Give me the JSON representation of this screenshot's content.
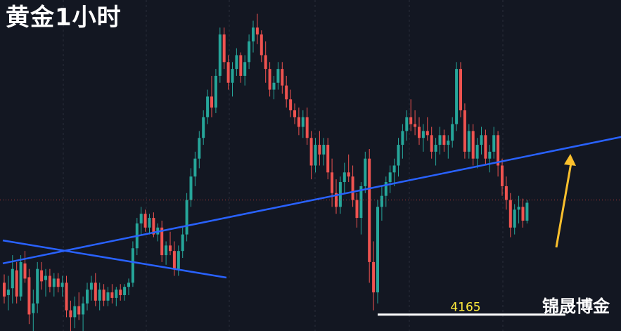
{
  "title": "黄金1小时",
  "watermark": "锦晟博金",
  "colors": {
    "background": "#131722",
    "up": "#26a69a",
    "down": "#ef5350",
    "trendline": "#2962ff",
    "support": "#ffffff",
    "support_label": "#ffeb3b",
    "arrow": "#fbc02d",
    "grid": "#2a2e39",
    "price_line": "#b03a3a"
  },
  "chart_data": {
    "type": "candlestick",
    "timeframe": "1h",
    "y_range": [
      4150,
      4390
    ],
    "annotations": {
      "support_level": {
        "label": "4165",
        "value": 4165
      },
      "rising_trendline": {
        "from_index": 0,
        "from_value": 4199,
        "to_index": 130,
        "to_value": 4279
      },
      "falling_trendline": {
        "from_index": 0,
        "from_value": 4180,
        "to_index": 60,
        "to_value": 4140
      },
      "price_line": 4245,
      "arrow": "up"
    },
    "candles": [
      [
        4185,
        4191,
        4170,
        4175
      ],
      [
        4176,
        4190,
        4165,
        4180
      ],
      [
        4181,
        4205,
        4170,
        4195
      ],
      [
        4194,
        4200,
        4170,
        4175
      ],
      [
        4175,
        4205,
        4172,
        4200
      ],
      [
        4199,
        4208,
        4185,
        4188
      ],
      [
        4189,
        4195,
        4155,
        4162
      ],
      [
        4163,
        4180,
        4140,
        4170
      ],
      [
        4170,
        4200,
        4163,
        4195
      ],
      [
        4194,
        4200,
        4180,
        4186
      ],
      [
        4187,
        4195,
        4175,
        4190
      ],
      [
        4190,
        4195,
        4178,
        4182
      ],
      [
        4182,
        4192,
        4175,
        4188
      ],
      [
        4188,
        4192,
        4178,
        4182
      ],
      [
        4182,
        4190,
        4175,
        4185
      ],
      [
        4185,
        4190,
        4160,
        4165
      ],
      [
        4165,
        4172,
        4150,
        4160
      ],
      [
        4160,
        4175,
        4152,
        4168
      ],
      [
        4168,
        4178,
        4158,
        4162
      ],
      [
        4162,
        4175,
        4150,
        4170
      ],
      [
        4170,
        4185,
        4165,
        4180
      ],
      [
        4180,
        4190,
        4172,
        4185
      ],
      [
        4185,
        4192,
        4168,
        4172
      ],
      [
        4172,
        4185,
        4165,
        4180
      ],
      [
        4180,
        4184,
        4168,
        4172
      ],
      [
        4172,
        4182,
        4168,
        4178
      ],
      [
        4178,
        4184,
        4170,
        4174
      ],
      [
        4174,
        4182,
        4168,
        4180
      ],
      [
        4180,
        4184,
        4172,
        4176
      ],
      [
        4176,
        4184,
        4172,
        4182
      ],
      [
        4182,
        4188,
        4176,
        4185
      ],
      [
        4185,
        4215,
        4182,
        4210
      ],
      [
        4210,
        4232,
        4205,
        4228
      ],
      [
        4228,
        4240,
        4220,
        4235
      ],
      [
        4235,
        4238,
        4222,
        4225
      ],
      [
        4225,
        4235,
        4220,
        4232
      ],
      [
        4232,
        4236,
        4218,
        4220
      ],
      [
        4220,
        4228,
        4215,
        4225
      ],
      [
        4225,
        4230,
        4200,
        4205
      ],
      [
        4205,
        4215,
        4198,
        4212
      ],
      [
        4212,
        4222,
        4205,
        4208
      ],
      [
        4208,
        4215,
        4190,
        4195
      ],
      [
        4195,
        4212,
        4190,
        4208
      ],
      [
        4208,
        4225,
        4203,
        4220
      ],
      [
        4220,
        4250,
        4215,
        4245
      ],
      [
        4245,
        4268,
        4240,
        4262
      ],
      [
        4262,
        4280,
        4255,
        4275
      ],
      [
        4275,
        4295,
        4268,
        4290
      ],
      [
        4290,
        4310,
        4285,
        4305
      ],
      [
        4305,
        4325,
        4300,
        4320
      ],
      [
        4320,
        4335,
        4305,
        4312
      ],
      [
        4312,
        4340,
        4308,
        4335
      ],
      [
        4335,
        4370,
        4330,
        4365
      ],
      [
        4365,
        4370,
        4340,
        4345
      ],
      [
        4345,
        4350,
        4325,
        4330
      ],
      [
        4330,
        4345,
        4320,
        4340
      ],
      [
        4340,
        4355,
        4335,
        4350
      ],
      [
        4350,
        4352,
        4330,
        4335
      ],
      [
        4335,
        4350,
        4328,
        4345
      ],
      [
        4345,
        4365,
        4340,
        4360
      ],
      [
        4360,
        4375,
        4352,
        4370
      ],
      [
        4370,
        4380,
        4358,
        4365
      ],
      [
        4365,
        4368,
        4345,
        4350
      ],
      [
        4350,
        4360,
        4330,
        4340
      ],
      [
        4340,
        4345,
        4320,
        4325
      ],
      [
        4325,
        4335,
        4318,
        4330
      ],
      [
        4330,
        4345,
        4325,
        4340
      ],
      [
        4340,
        4345,
        4322,
        4328
      ],
      [
        4328,
        4335,
        4312,
        4318
      ],
      [
        4318,
        4325,
        4305,
        4310
      ],
      [
        4310,
        4315,
        4300,
        4305
      ],
      [
        4305,
        4312,
        4292,
        4298
      ],
      [
        4298,
        4310,
        4290,
        4305
      ],
      [
        4305,
        4312,
        4285,
        4290
      ],
      [
        4290,
        4295,
        4260,
        4270
      ],
      [
        4270,
        4290,
        4265,
        4285
      ],
      [
        4285,
        4295,
        4270,
        4278
      ],
      [
        4278,
        4290,
        4270,
        4285
      ],
      [
        4285,
        4290,
        4260,
        4265
      ],
      [
        4265,
        4275,
        4240,
        4250
      ],
      [
        4250,
        4260,
        4235,
        4240
      ],
      [
        4240,
        4262,
        4235,
        4258
      ],
      [
        4258,
        4272,
        4250,
        4265
      ],
      [
        4265,
        4278,
        4258,
        4262
      ],
      [
        4262,
        4270,
        4240,
        4245
      ],
      [
        4245,
        4250,
        4225,
        4232
      ],
      [
        4232,
        4258,
        4220,
        4255
      ],
      [
        4255,
        4280,
        4250,
        4275
      ],
      [
        4275,
        4282,
        4185,
        4200
      ],
      [
        4200,
        4215,
        4165,
        4178
      ],
      [
        4178,
        4245,
        4170,
        4240
      ],
      [
        4240,
        4255,
        4230,
        4248
      ],
      [
        4248,
        4262,
        4240,
        4258
      ],
      [
        4258,
        4270,
        4250,
        4265
      ],
      [
        4265,
        4275,
        4255,
        4270
      ],
      [
        4270,
        4290,
        4262,
        4285
      ],
      [
        4285,
        4300,
        4275,
        4295
      ],
      [
        4295,
        4310,
        4288,
        4305
      ],
      [
        4305,
        4318,
        4295,
        4300
      ],
      [
        4300,
        4310,
        4292,
        4298
      ],
      [
        4298,
        4305,
        4285,
        4290
      ],
      [
        4290,
        4300,
        4280,
        4295
      ],
      [
        4295,
        4305,
        4288,
        4292
      ],
      [
        4292,
        4298,
        4275,
        4280
      ],
      [
        4280,
        4290,
        4270,
        4285
      ],
      [
        4285,
        4298,
        4278,
        4292
      ],
      [
        4292,
        4296,
        4280,
        4285
      ],
      [
        4285,
        4292,
        4275,
        4288
      ],
      [
        4288,
        4305,
        4283,
        4300
      ],
      [
        4300,
        4345,
        4295,
        4340
      ],
      [
        4340,
        4345,
        4305,
        4310
      ],
      [
        4310,
        4315,
        4275,
        4280
      ],
      [
        4280,
        4300,
        4275,
        4295
      ],
      [
        4295,
        4300,
        4270,
        4275
      ],
      [
        4275,
        4290,
        4268,
        4285
      ],
      [
        4285,
        4298,
        4278,
        4292
      ],
      [
        4292,
        4296,
        4270,
        4275
      ],
      [
        4275,
        4285,
        4265,
        4280
      ],
      [
        4280,
        4298,
        4275,
        4292
      ],
      [
        4292,
        4295,
        4262,
        4270
      ],
      [
        4270,
        4275,
        4248,
        4255
      ],
      [
        4255,
        4262,
        4238,
        4245
      ],
      [
        4245,
        4250,
        4218,
        4225
      ],
      [
        4225,
        4242,
        4220,
        4238
      ],
      [
        4238,
        4248,
        4228,
        4240
      ],
      [
        4240,
        4246,
        4225,
        4230
      ],
      [
        4230,
        4245,
        4228,
        4243
      ]
    ]
  }
}
